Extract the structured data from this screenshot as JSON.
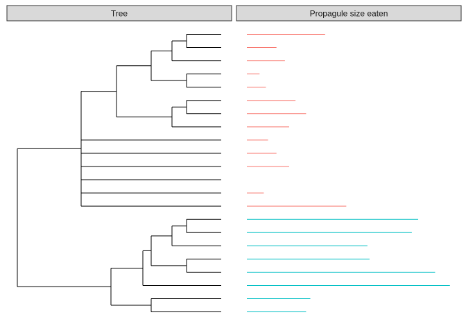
{
  "chart_data": [
    {
      "type": "tree",
      "title": "Tree",
      "tips": 22,
      "line_color": "#000000"
    },
    {
      "type": "bar",
      "title": "Propagule size eaten",
      "orientation": "horizontal",
      "xlim": [
        0,
        1
      ],
      "grid": false,
      "legend": "none",
      "groups": [
        {
          "name": "",
          "color": "#F8766D",
          "rows": [
            1,
            14
          ]
        },
        {
          "name": "",
          "color": "#00BFC4",
          "rows": [
            15,
            22
          ]
        }
      ],
      "values": [
        0.37,
        0.14,
        0.18,
        0.06,
        0.09,
        0.23,
        0.28,
        0.2,
        0.1,
        0.14,
        0.2,
        null,
        0.08,
        0.47,
        0.81,
        0.78,
        0.57,
        0.58,
        0.89,
        0.96,
        0.3,
        0.28
      ]
    }
  ],
  "panels": {
    "tree_strip": "Tree",
    "size_strip": "Propagule size eaten"
  },
  "colors": {
    "strip_fill": "#D9D9D9",
    "strip_border": "#333333",
    "group_a": "#F8766D",
    "group_b": "#00BFC4"
  }
}
